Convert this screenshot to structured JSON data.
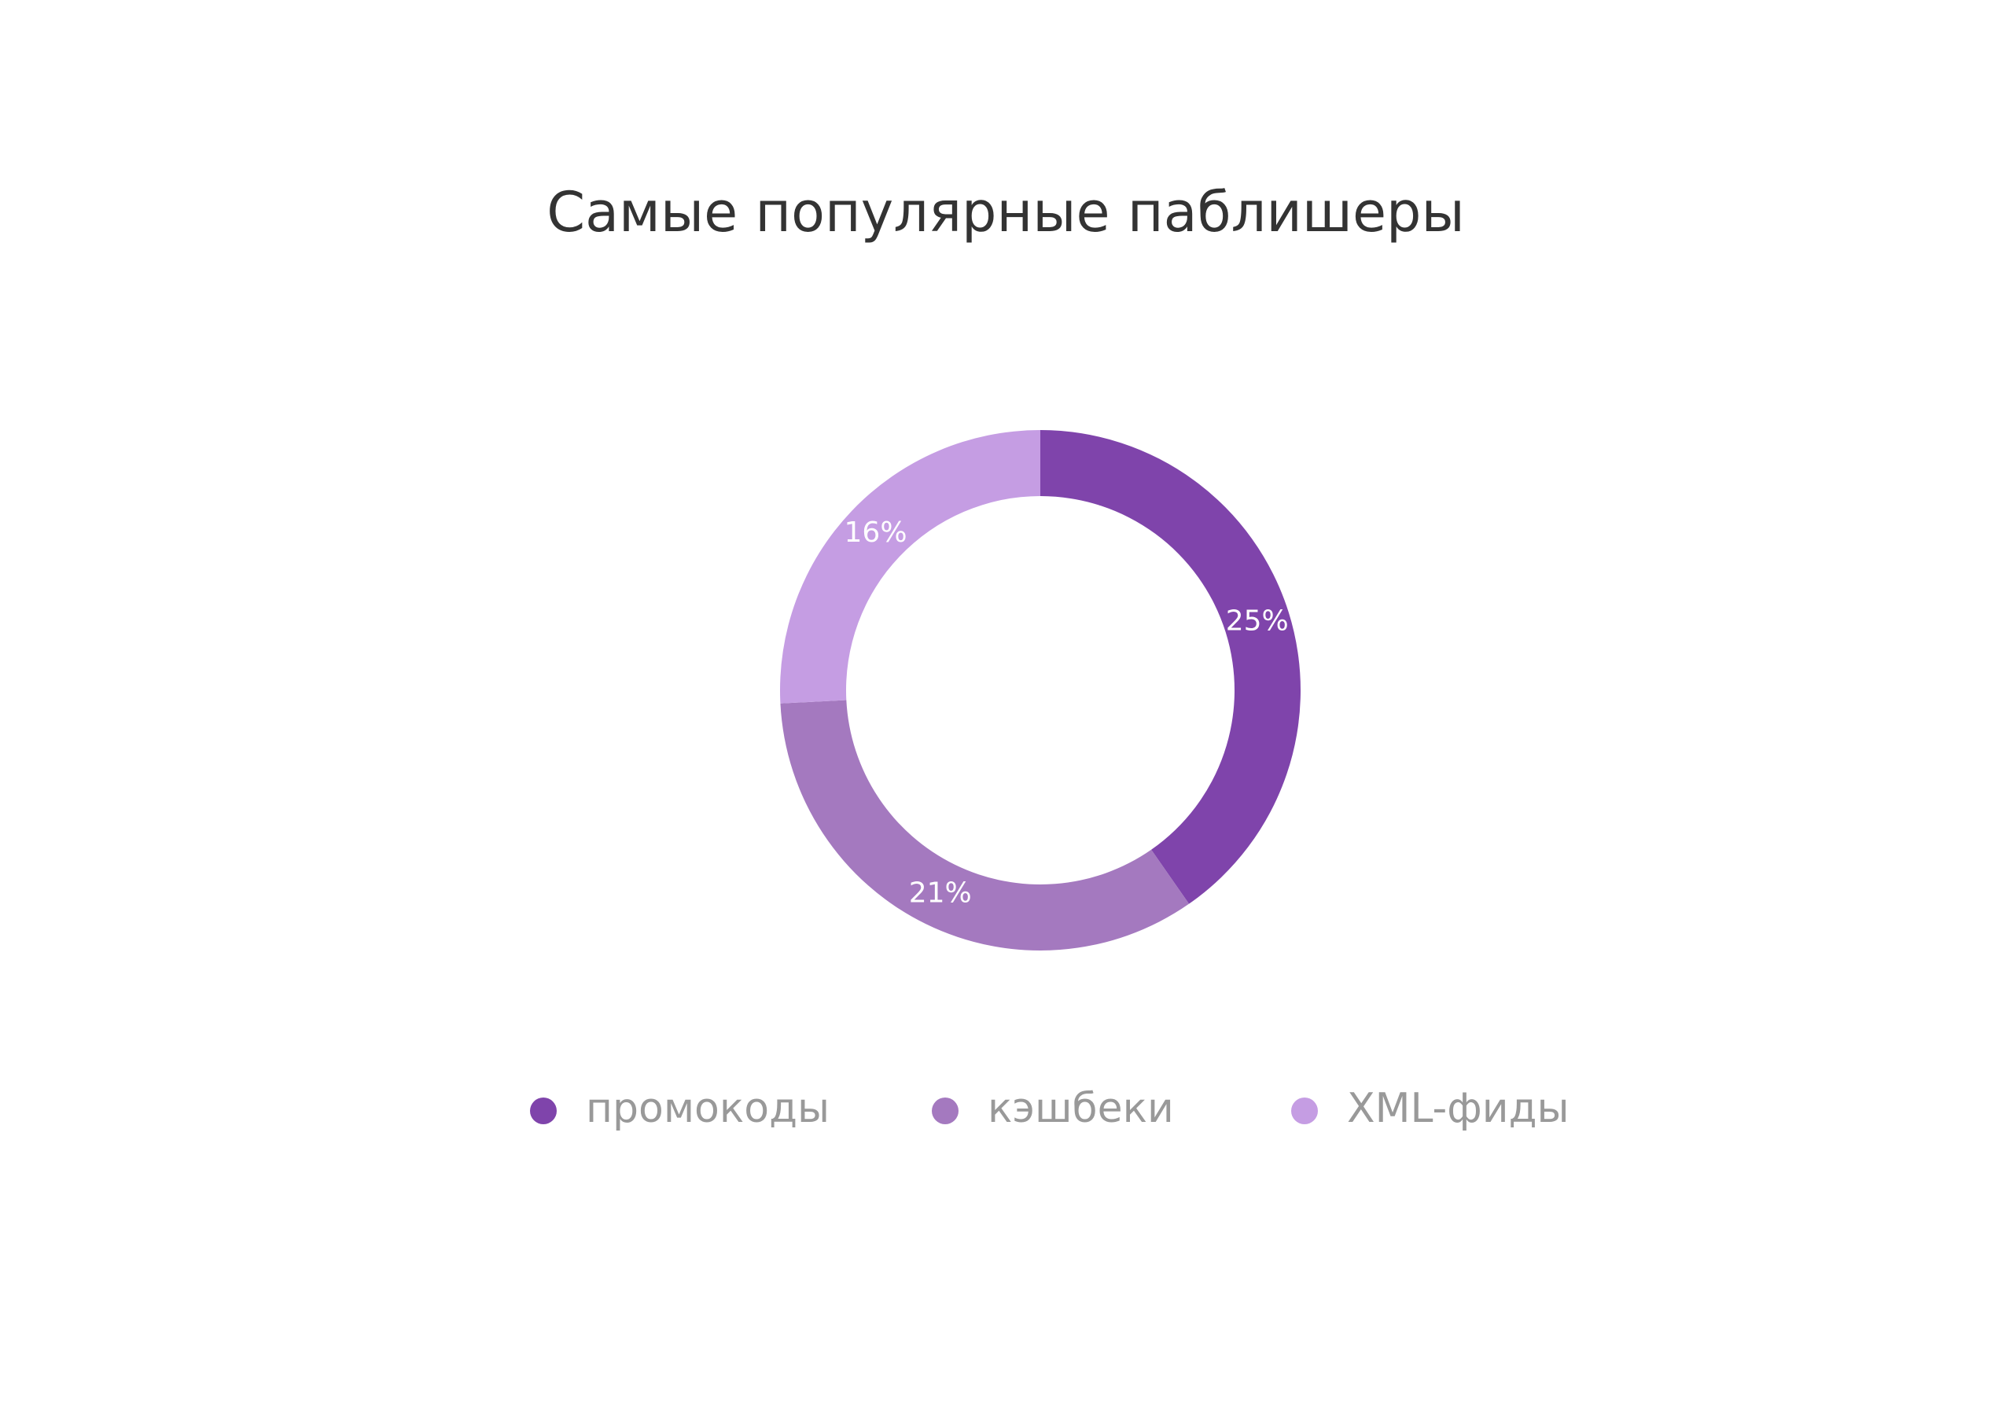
{
  "chart_data": {
    "type": "pie",
    "title": "Самые популярные паблишеры",
    "categories": [
      "промокоды",
      "кэшбеки",
      "XML-фиды"
    ],
    "values": [
      25,
      21,
      16
    ],
    "value_labels": [
      "25%",
      "21%",
      "16%"
    ],
    "colors": [
      "#7f44ab",
      "#a479bf",
      "#c59de3"
    ],
    "donut": true,
    "legend": "bottom"
  }
}
